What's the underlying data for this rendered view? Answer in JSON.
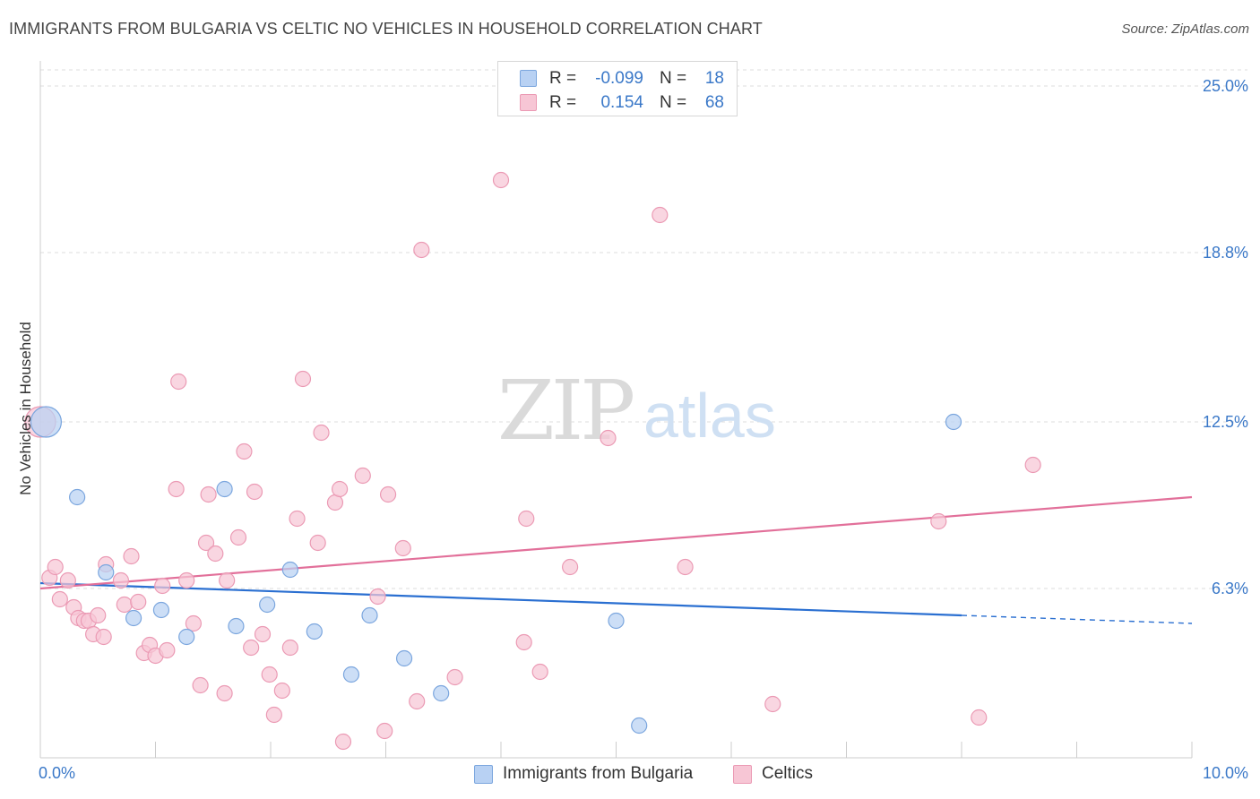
{
  "header": {
    "title": "IMMIGRANTS FROM BULGARIA VS CELTIC NO VEHICLES IN HOUSEHOLD CORRELATION CHART",
    "source": "Source: ZipAtlas.com"
  },
  "watermark": {
    "zip": "ZIP",
    "atlas": "atlas"
  },
  "legend": {
    "rows": [
      {
        "r_label": "R =",
        "r_value": "-0.099",
        "n_label": "N =",
        "n_value": "18"
      },
      {
        "r_label": "R =",
        "r_value": "0.154",
        "n_label": "N =",
        "n_value": "68"
      }
    ]
  },
  "bottom_legend": {
    "items": [
      {
        "label": "Immigrants from Bulgaria"
      },
      {
        "label": "Celtics"
      }
    ]
  },
  "colors": {
    "blue_fill": "#b8d1f3",
    "blue_stroke": "#7ba6de",
    "blue_line": "#2a6fd1",
    "pink_fill": "#f7c6d5",
    "pink_stroke": "#eb9ab4",
    "pink_line": "#e2709a",
    "tick_text": "#3a78c8",
    "grid": "#dddddd"
  },
  "chart_data": {
    "type": "scatter",
    "title": "IMMIGRANTS FROM BULGARIA VS CELTIC NO VEHICLES IN HOUSEHOLD CORRELATION CHART",
    "xlabel": "",
    "ylabel": "No Vehicles in Household",
    "xlim": [
      0,
      10
    ],
    "ylim": [
      0,
      25.6
    ],
    "x_tick_labels": [
      "0.0%",
      "10.0%"
    ],
    "y_ticks": [
      6.3,
      12.5,
      18.8,
      25.0
    ],
    "y_tick_labels": [
      "6.3%",
      "12.5%",
      "18.8%",
      "25.0%"
    ],
    "grid": "horizontal dashed",
    "legend_position": "top-center",
    "series": [
      {
        "name": "Immigrants from Bulgaria",
        "color": "#b8d1f3",
        "points": [
          [
            0.05,
            12.5,
            "large"
          ],
          [
            0.32,
            9.7
          ],
          [
            0.57,
            6.9
          ],
          [
            0.81,
            5.2
          ],
          [
            1.05,
            5.5
          ],
          [
            1.27,
            4.5
          ],
          [
            1.6,
            10.0
          ],
          [
            1.7,
            4.9
          ],
          [
            1.97,
            5.7
          ],
          [
            2.17,
            7.0
          ],
          [
            2.38,
            4.7
          ],
          [
            2.7,
            3.1
          ],
          [
            2.86,
            5.3
          ],
          [
            3.16,
            3.7
          ],
          [
            3.48,
            2.4
          ],
          [
            5.0,
            5.1
          ],
          [
            5.2,
            1.2
          ],
          [
            7.93,
            12.5
          ]
        ],
        "trend": {
          "x": [
            0.0,
            8.0
          ],
          "y": [
            6.5,
            5.3
          ],
          "dashed_extension": {
            "x": [
              8.0,
              10.0
            ],
            "y": [
              5.3,
              5.0
            ]
          }
        }
      },
      {
        "name": "Celtics",
        "color": "#f7c6d5",
        "points": [
          [
            0.0,
            12.5,
            "large"
          ],
          [
            0.08,
            6.7
          ],
          [
            0.13,
            7.1
          ],
          [
            0.17,
            5.9
          ],
          [
            0.24,
            6.6
          ],
          [
            0.29,
            5.6
          ],
          [
            0.33,
            5.2
          ],
          [
            0.38,
            5.1
          ],
          [
            0.42,
            5.1
          ],
          [
            0.46,
            4.6
          ],
          [
            0.5,
            5.3
          ],
          [
            0.55,
            4.5
          ],
          [
            0.57,
            7.2
          ],
          [
            0.7,
            6.6
          ],
          [
            0.73,
            5.7
          ],
          [
            0.79,
            7.5
          ],
          [
            0.85,
            5.8
          ],
          [
            0.9,
            3.9
          ],
          [
            0.95,
            4.2
          ],
          [
            1.0,
            3.8
          ],
          [
            1.06,
            6.4
          ],
          [
            1.1,
            4.0
          ],
          [
            1.18,
            10.0
          ],
          [
            1.2,
            14.0
          ],
          [
            1.27,
            6.6
          ],
          [
            1.33,
            5.0
          ],
          [
            1.39,
            2.7
          ],
          [
            1.44,
            8.0
          ],
          [
            1.46,
            9.8
          ],
          [
            1.52,
            7.6
          ],
          [
            1.6,
            2.4
          ],
          [
            1.62,
            6.6
          ],
          [
            1.72,
            8.2
          ],
          [
            1.77,
            11.4
          ],
          [
            1.83,
            4.1
          ],
          [
            1.86,
            9.9
          ],
          [
            1.93,
            4.6
          ],
          [
            1.99,
            3.1
          ],
          [
            2.03,
            1.6
          ],
          [
            2.1,
            2.5
          ],
          [
            2.17,
            4.1
          ],
          [
            2.23,
            8.9
          ],
          [
            2.28,
            14.1
          ],
          [
            2.41,
            8.0
          ],
          [
            2.44,
            12.1
          ],
          [
            2.56,
            9.5
          ],
          [
            2.6,
            10.0
          ],
          [
            2.63,
            0.6
          ],
          [
            2.8,
            10.5
          ],
          [
            2.93,
            6.0
          ],
          [
            2.99,
            1.0
          ],
          [
            3.02,
            9.8
          ],
          [
            3.15,
            7.8
          ],
          [
            3.27,
            2.1
          ],
          [
            3.31,
            18.9
          ],
          [
            3.6,
            3.0
          ],
          [
            4.0,
            21.5
          ],
          [
            4.2,
            4.3
          ],
          [
            4.22,
            8.9
          ],
          [
            4.34,
            3.2
          ],
          [
            4.6,
            7.1
          ],
          [
            4.93,
            11.9
          ],
          [
            5.38,
            20.2
          ],
          [
            5.6,
            7.1
          ],
          [
            6.36,
            2.0
          ],
          [
            7.8,
            8.8
          ],
          [
            8.15,
            1.5
          ],
          [
            8.62,
            10.9
          ]
        ],
        "trend": {
          "x": [
            0.0,
            10.0
          ],
          "y": [
            6.3,
            9.7
          ]
        }
      }
    ]
  }
}
